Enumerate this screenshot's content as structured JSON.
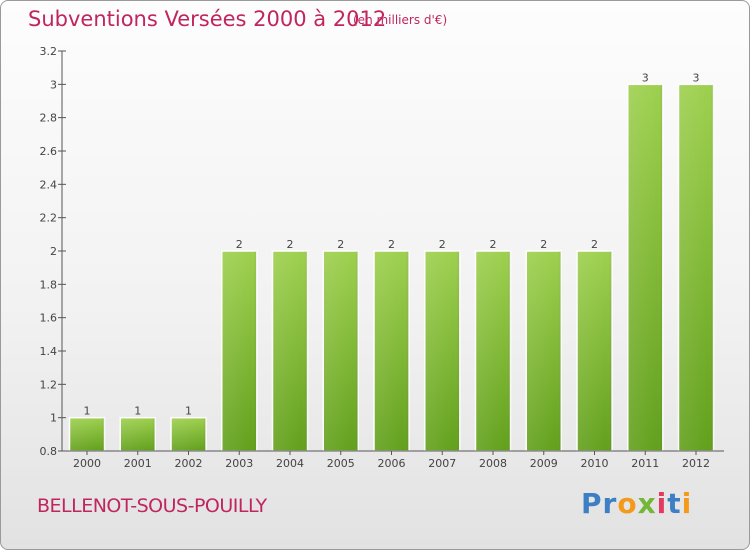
{
  "header": {
    "title": "Subventions Versées 2000 à 2012",
    "unit": "(en milliers d'€)"
  },
  "footer": {
    "commune": "BELLENOT-SOUS-POUILLY",
    "logo_letters": [
      {
        "char": "P",
        "color": "#3d7fc4"
      },
      {
        "char": "r",
        "color": "#3d7fc4"
      },
      {
        "char": "o",
        "color": "#f39a1d"
      },
      {
        "char": "x",
        "color": "#74b638"
      },
      {
        "char": "i",
        "color": "#e23b5f"
      },
      {
        "char": "t",
        "color": "#3d7fc4"
      },
      {
        "char": "i",
        "color": "#f39a1d"
      }
    ]
  },
  "colors": {
    "title": "#c0255e",
    "bar_light": "#9ed04f",
    "bar_dark": "#62a01c",
    "axis": "#555555"
  },
  "chart_data": {
    "type": "bar",
    "title": "Subventions Versées 2000 à 2012",
    "subtitle": "(en milliers d'€)",
    "categories": [
      "2000",
      "2001",
      "2002",
      "2003",
      "2004",
      "2005",
      "2006",
      "2007",
      "2008",
      "2009",
      "2010",
      "2011",
      "2012"
    ],
    "values": [
      1,
      1,
      1,
      2,
      2,
      2,
      2,
      2,
      2,
      2,
      2,
      3,
      3
    ],
    "data_labels": [
      "1",
      "1",
      "1",
      "2",
      "2",
      "2",
      "2",
      "2",
      "2",
      "2",
      "2",
      "3",
      "3"
    ],
    "ylim": [
      0.8,
      3.2
    ],
    "yticks": [
      "0.8",
      "1",
      "1.2",
      "1.4",
      "1.6",
      "1.8",
      "2",
      "2.2",
      "2.4",
      "2.6",
      "2.8",
      "3",
      "3.2"
    ],
    "grid": false,
    "legend": "none"
  }
}
